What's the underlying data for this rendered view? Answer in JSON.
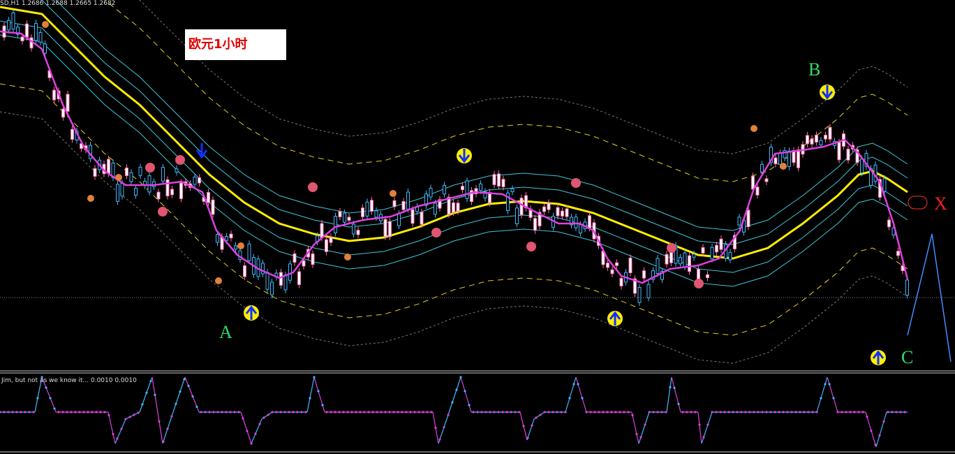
{
  "header": {
    "symbol_line": "SD,H1  1.2686 1.2688 1.2665 1.2682"
  },
  "label": "欧元1小时",
  "annotations": {
    "a": "A",
    "b": "B",
    "c": "C",
    "x": "X"
  },
  "subwindow": {
    "title": "Jim, but not as we know it...  0.0010 0.0010"
  }
}
